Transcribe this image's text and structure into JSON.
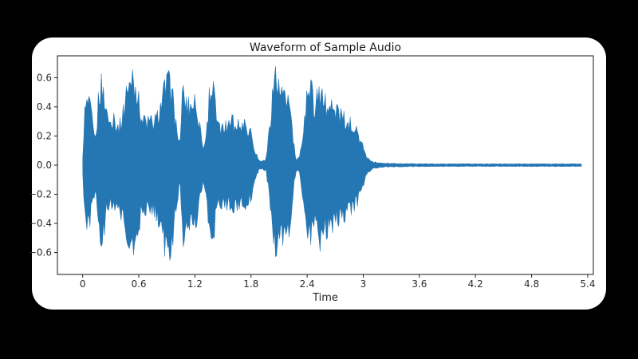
{
  "window": {
    "background_color": "#000000",
    "card_background_color": "#ffffff"
  },
  "chart_data": {
    "type": "line",
    "title": "Waveform of Sample Audio",
    "xlabel": "Time",
    "ylabel": "",
    "line_color": "#2577b4",
    "axis_color": "#1a1a1a",
    "grid": false,
    "legend": null,
    "xlim": [
      -0.27,
      5.46
    ],
    "ylim": [
      -0.75,
      0.75
    ],
    "x_ticks": [
      0,
      0.6,
      1.2,
      1.8,
      2.4,
      3,
      3.6,
      4.2,
      4.8,
      5.4
    ],
    "x_tick_labels": [
      "0",
      "0.6",
      "1.2",
      "1.8",
      "2.4",
      "3",
      "3.6",
      "4.2",
      "4.8",
      "5.4"
    ],
    "y_ticks": [
      0.6,
      0.4,
      0.2,
      0.0,
      -0.2,
      -0.4,
      -0.6
    ],
    "y_tick_labels": [
      "0.6",
      "0.4",
      "0.2",
      "0.0",
      "−0.2",
      "−0.4",
      "−0.6"
    ],
    "duration": 5.33,
    "envelope": {
      "t": [
        0.0,
        0.02,
        0.05,
        0.08,
        0.11,
        0.14,
        0.17,
        0.2,
        0.23,
        0.26,
        0.29,
        0.32,
        0.35,
        0.38,
        0.41,
        0.44,
        0.48,
        0.52,
        0.56,
        0.6,
        0.64,
        0.68,
        0.72,
        0.76,
        0.8,
        0.84,
        0.88,
        0.92,
        0.96,
        1.0,
        1.04,
        1.07,
        1.11,
        1.15,
        1.19,
        1.23,
        1.26,
        1.29,
        1.33,
        1.36,
        1.4,
        1.44,
        1.48,
        1.52,
        1.56,
        1.6,
        1.64,
        1.68,
        1.72,
        1.76,
        1.8,
        1.84,
        1.88,
        1.92,
        1.96,
        2.0,
        2.03,
        2.06,
        2.1,
        2.14,
        2.18,
        2.22,
        2.25,
        2.28,
        2.32,
        2.36,
        2.4,
        2.44,
        2.47,
        2.5,
        2.54,
        2.58,
        2.62,
        2.66,
        2.7,
        2.74,
        2.78,
        2.82,
        2.86,
        2.9,
        2.94,
        2.98,
        3.02,
        3.06,
        3.1,
        3.2,
        3.4,
        3.7,
        4.0,
        4.4,
        4.8,
        5.1,
        5.33
      ],
      "upper": [
        0.05,
        0.42,
        0.5,
        0.45,
        0.3,
        0.16,
        0.55,
        0.63,
        0.57,
        0.35,
        0.34,
        0.38,
        0.33,
        0.3,
        0.34,
        0.44,
        0.6,
        0.65,
        0.67,
        0.5,
        0.35,
        0.33,
        0.35,
        0.33,
        0.38,
        0.5,
        0.6,
        0.65,
        0.55,
        0.3,
        0.15,
        0.6,
        0.46,
        0.48,
        0.5,
        0.42,
        0.25,
        0.12,
        0.3,
        0.62,
        0.57,
        0.3,
        0.28,
        0.3,
        0.33,
        0.35,
        0.3,
        0.33,
        0.32,
        0.3,
        0.25,
        0.12,
        0.04,
        0.03,
        0.05,
        0.3,
        0.6,
        0.68,
        0.58,
        0.52,
        0.5,
        0.45,
        0.2,
        0.04,
        0.06,
        0.3,
        0.55,
        0.63,
        0.45,
        0.52,
        0.55,
        0.5,
        0.47,
        0.45,
        0.43,
        0.4,
        0.38,
        0.35,
        0.33,
        0.3,
        0.25,
        0.18,
        0.08,
        0.04,
        0.025,
        0.015,
        0.012,
        0.01,
        0.01,
        0.01,
        0.01,
        0.01,
        0.01
      ],
      "lower": [
        -0.05,
        -0.36,
        -0.46,
        -0.42,
        -0.28,
        -0.15,
        -0.5,
        -0.56,
        -0.5,
        -0.3,
        -0.32,
        -0.35,
        -0.3,
        -0.32,
        -0.38,
        -0.42,
        -0.55,
        -0.6,
        -0.63,
        -0.48,
        -0.33,
        -0.35,
        -0.33,
        -0.35,
        -0.4,
        -0.52,
        -0.64,
        -0.68,
        -0.58,
        -0.3,
        -0.15,
        -0.58,
        -0.43,
        -0.45,
        -0.46,
        -0.4,
        -0.22,
        -0.12,
        -0.28,
        -0.6,
        -0.55,
        -0.28,
        -0.3,
        -0.32,
        -0.3,
        -0.33,
        -0.32,
        -0.3,
        -0.33,
        -0.28,
        -0.25,
        -0.12,
        -0.04,
        -0.03,
        -0.05,
        -0.25,
        -0.55,
        -0.63,
        -0.6,
        -0.55,
        -0.52,
        -0.48,
        -0.2,
        -0.04,
        -0.06,
        -0.28,
        -0.5,
        -0.55,
        -0.42,
        -0.48,
        -0.6,
        -0.52,
        -0.5,
        -0.47,
        -0.45,
        -0.42,
        -0.4,
        -0.38,
        -0.35,
        -0.32,
        -0.28,
        -0.2,
        -0.1,
        -0.05,
        -0.025,
        -0.015,
        -0.012,
        -0.01,
        -0.01,
        -0.01,
        -0.01,
        -0.01,
        -0.01
      ]
    }
  }
}
